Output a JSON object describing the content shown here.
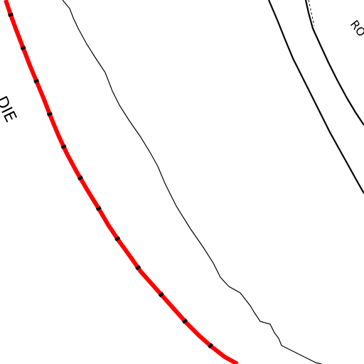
{
  "map": {
    "labels": {
      "left_road_fragment": "DIE",
      "right_road_fragment": "RO"
    },
    "colors": {
      "background": "#ffffff",
      "rail_line": "#ff0000",
      "rail_tie": "#000000",
      "road_casing": "#000000",
      "terrain_line": "#000000"
    }
  }
}
